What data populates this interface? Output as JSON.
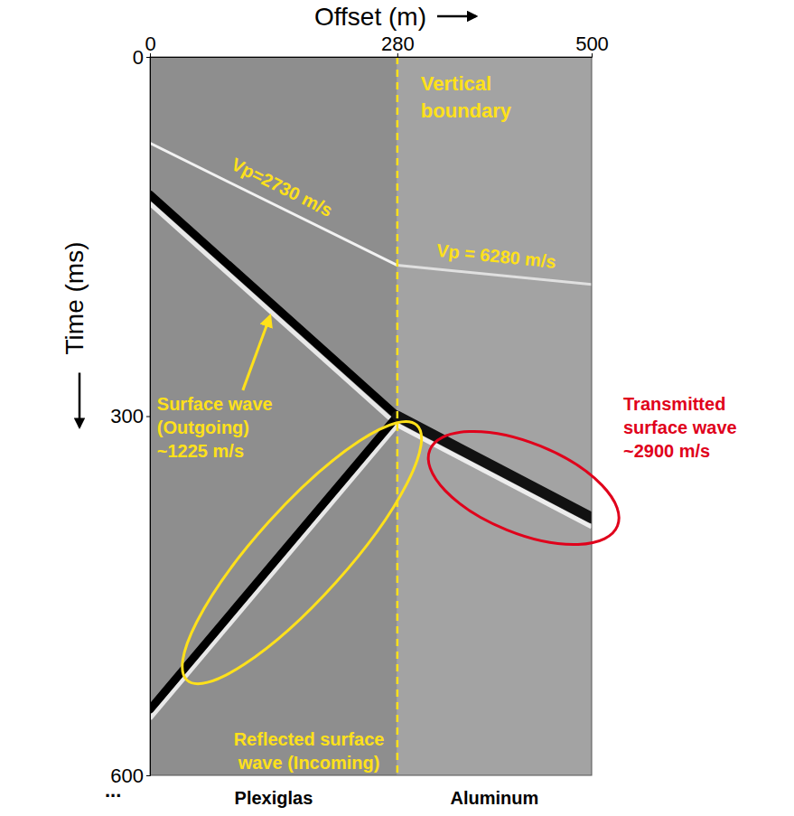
{
  "chart_data": {
    "type": "line",
    "x_label": "Offset (m)",
    "y_label": "Time (ms)",
    "xlim": [
      0,
      500
    ],
    "xticks": [
      0,
      280,
      500
    ],
    "ylim": [
      0,
      600
    ],
    "yticks": [
      0,
      300,
      600
    ],
    "boundary": {
      "label": "Vertical boundary",
      "x": 280,
      "color": "#ffe11a"
    },
    "regions": [
      "Plexiglas",
      "Aluminum"
    ],
    "ellipsis": "...",
    "series": [
      {
        "name": "Vp=2730 m/s",
        "color": "#f2f2f2",
        "x": [
          0,
          280
        ],
        "values": [
          72,
          174
        ]
      },
      {
        "name": "Vp = 6280 m/s",
        "color": "#e0e0e0",
        "x": [
          280,
          500
        ],
        "values": [
          174,
          190
        ]
      },
      {
        "name": "Surface wave (Outgoing) ~1225 m/s",
        "color": "#000000",
        "x": [
          0,
          280
        ],
        "values": [
          115,
          300
        ]
      },
      {
        "name": "Reflected surface wave (Incoming)",
        "color": "#000000",
        "x": [
          280,
          0
        ],
        "values": [
          300,
          545
        ]
      },
      {
        "name": "Transmitted surface wave ~2900 m/s",
        "color": "#111111",
        "x": [
          280,
          500
        ],
        "values": [
          300,
          385
        ]
      }
    ]
  }
}
